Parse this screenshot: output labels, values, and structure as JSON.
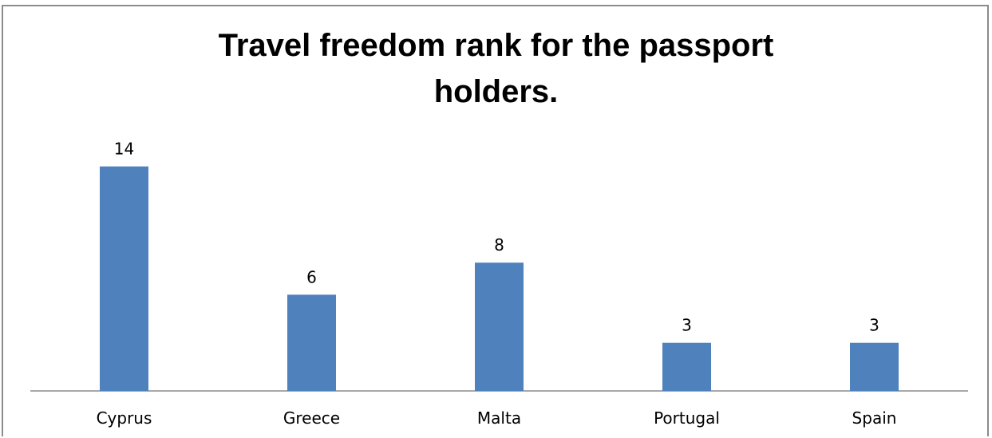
{
  "chart_data": {
    "type": "bar",
    "title": "Travel freedom rank for the passport holders.",
    "categories": [
      "Cyprus",
      "Greece",
      "Malta",
      "Portugal",
      "Spain"
    ],
    "values": [
      14,
      6,
      8,
      3,
      3
    ],
    "data_labels": [
      "14",
      "6",
      "8",
      "3",
      "3"
    ],
    "xlabel": "",
    "ylabel": "",
    "ylim": [
      0,
      14
    ],
    "grid": false,
    "legend": "none",
    "bar_color": "#4f81bd"
  }
}
